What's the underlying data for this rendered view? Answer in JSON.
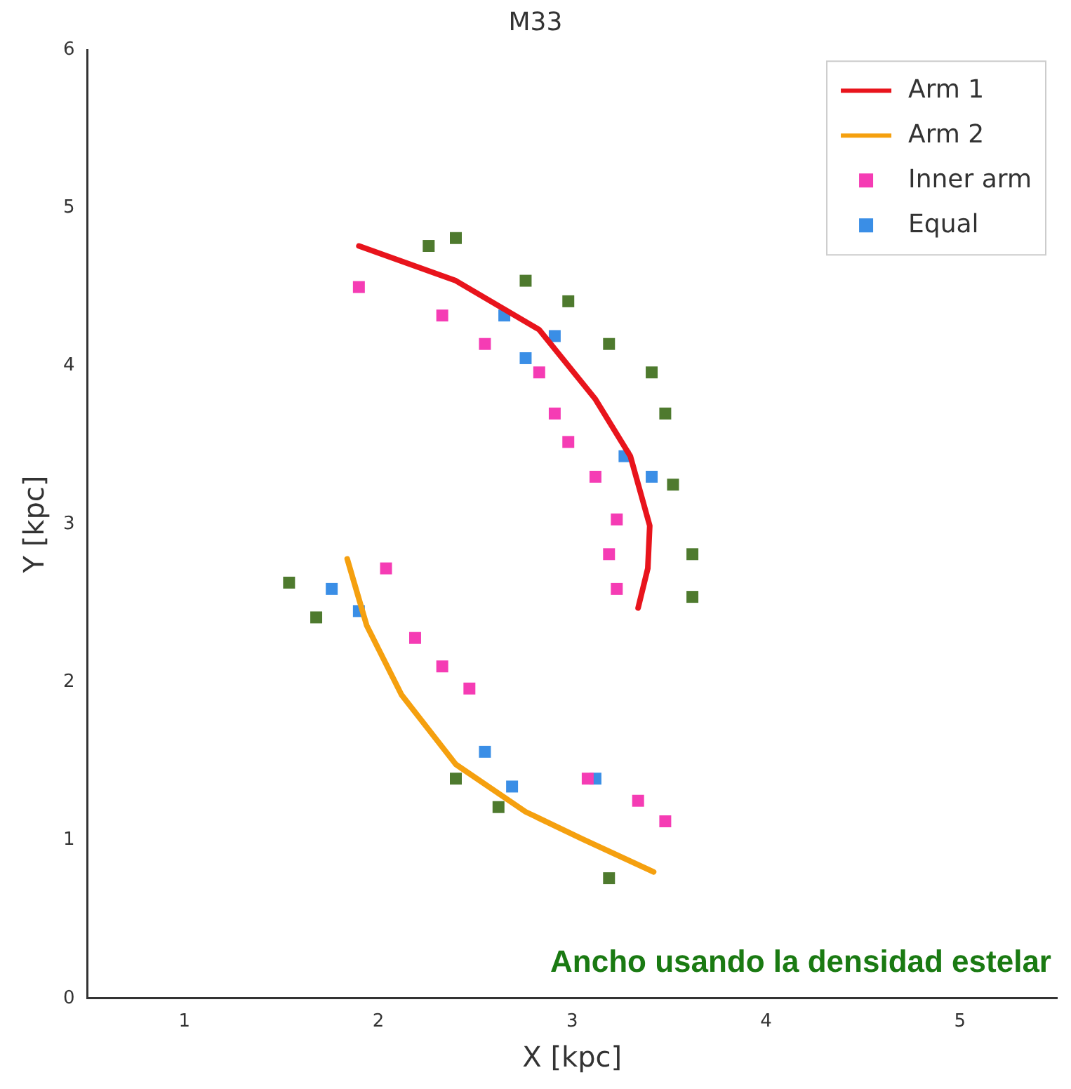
{
  "chart_data": {
    "type": "scatter",
    "title": "M33",
    "xlabel": "X [kpc]",
    "ylabel": "Y [kpc]",
    "xlim": [
      0.5,
      5.5
    ],
    "xticks": [
      1,
      2,
      3,
      4,
      5
    ],
    "ylim": [
      0,
      6
    ],
    "yticks": [
      0,
      1,
      2,
      3,
      4,
      5,
      6
    ],
    "grid": false,
    "legend": "top right",
    "annotations": [
      "Ancho usando la densidad estelar"
    ],
    "series": [
      {
        "name": "Arm 1",
        "type": "line",
        "color": "#e8141c",
        "marker": "none",
        "x": [
          1.9,
          2.4,
          2.83,
          3.12,
          3.3,
          3.4,
          3.39,
          3.34
        ],
        "values": [
          4.76,
          4.54,
          4.23,
          3.79,
          3.43,
          2.99,
          2.72,
          2.47
        ]
      },
      {
        "name": "Arm 2",
        "type": "line",
        "color": "#f5a00f",
        "marker": "none",
        "x": [
          1.84,
          1.94,
          2.12,
          2.4,
          2.76,
          3.05,
          3.42
        ],
        "values": [
          2.78,
          2.36,
          1.92,
          1.48,
          1.18,
          1.01,
          0.8
        ]
      },
      {
        "name": "Inner arm",
        "color": "#f53cb4",
        "marker": "square",
        "x": [
          1.9,
          2.33,
          2.55,
          2.83,
          2.91,
          2.98,
          3.12,
          3.23,
          3.19,
          3.23,
          2.04,
          2.19,
          2.33,
          2.47,
          3.08,
          3.34,
          3.48
        ],
        "values": [
          4.5,
          4.32,
          4.14,
          3.96,
          3.7,
          3.52,
          3.3,
          3.03,
          2.81,
          2.59,
          2.72,
          2.28,
          2.1,
          1.96,
          1.39,
          1.25,
          1.12
        ]
      },
      {
        "name": "Equal",
        "color": "#3a8ee6",
        "marker": "square",
        "x": [
          2.65,
          2.76,
          2.91,
          3.27,
          3.41,
          1.76,
          1.9,
          2.55,
          2.69,
          3.12
        ],
        "values": [
          4.32,
          4.05,
          4.19,
          3.43,
          3.3,
          2.59,
          2.45,
          1.56,
          1.34,
          1.39
        ]
      },
      {
        "color": "#4e7a2e",
        "marker": "square",
        "x": [
          2.26,
          2.4,
          2.76,
          2.98,
          3.19,
          3.41,
          3.48,
          3.52,
          3.62,
          3.62,
          1.54,
          1.68,
          2.4,
          2.62,
          3.19
        ],
        "values": [
          4.76,
          4.81,
          4.54,
          4.41,
          4.14,
          3.96,
          3.7,
          3.25,
          2.81,
          2.54,
          2.63,
          2.41,
          1.39,
          1.21,
          0.76
        ]
      }
    ]
  }
}
